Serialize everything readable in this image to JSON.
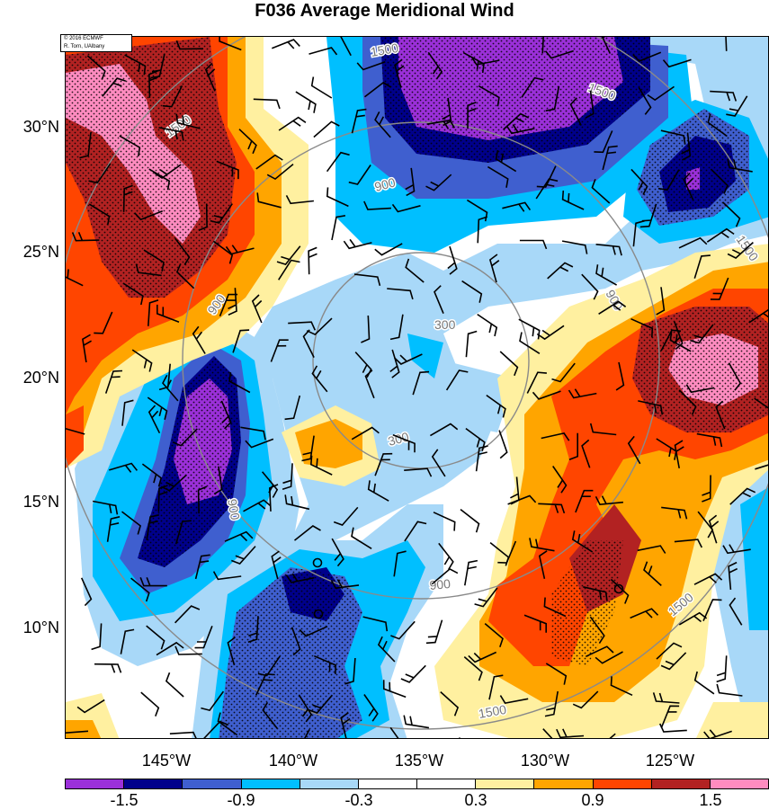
{
  "title": "F036 Average Meridional Wind",
  "credit": {
    "line1": "© 2016 ECMWF",
    "line2": "R. Torn, UAlbany"
  },
  "lat_labels": [
    "30°N",
    "25°N",
    "20°N",
    "15°N",
    "10°N"
  ],
  "lon_labels": [
    "145°W",
    "140°W",
    "135°W",
    "130°W",
    "125°W"
  ],
  "contour_labels": [
    "1500",
    "1500",
    "1500",
    "1500",
    "1500",
    "1500",
    "900",
    "900",
    "900",
    "900",
    "900",
    "300",
    "300"
  ],
  "colorbar": {
    "colors": [
      "#9b30d9",
      "#00008b",
      "#3f5fcf",
      "#00bfff",
      "#a8d8f8",
      "#ffffff",
      "#ffffff",
      "#fff0a0",
      "#ffa500",
      "#ff4500",
      "#b22222",
      "#ff8cc0"
    ],
    "labels": [
      "-1.5",
      "-0.9",
      "-0.3",
      "0.3",
      "0.9",
      "1.5"
    ]
  },
  "palette": {
    "purple": "#9b30d9",
    "navy": "#00008b",
    "blue": "#3f5fcf",
    "cyan": "#00bfff",
    "lightblue": "#a8d8f8",
    "yellow": "#fff0a0",
    "orange": "#ffa500",
    "redorange": "#ff4500",
    "darkred": "#b22222",
    "pink": "#ff8cc0"
  }
}
